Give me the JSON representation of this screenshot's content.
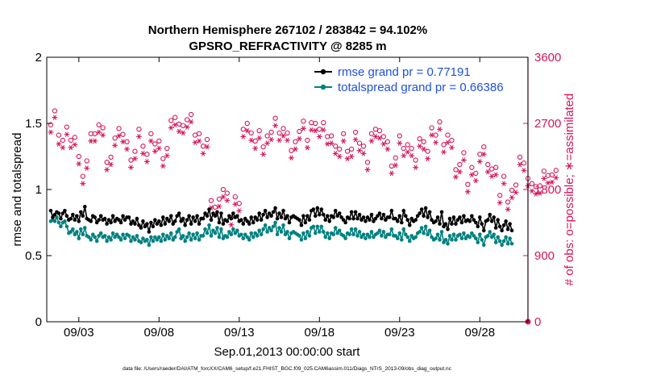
{
  "chart_data": {
    "type": "line",
    "title": "Northern Hemisphere 267102 / 283842 = 94.102%",
    "subtitle": "GPSRO_REFRACTIVITY @ 8285 m",
    "xlabel": "Sep.01,2013 00:00:00 start",
    "ylabel": "rmse and totalspread",
    "y2label": "# of obs: o=possible; ∗=assimilated",
    "footnote": "data file: /Users/raeder/DAI/ATM_forcXX/CAM6_setup/f.e21.FHIST_BGC.f09_025.CAM6assim.011/Diags_NTrS_2013-09/obs_diag_output.nc",
    "x_ticks": [
      {
        "label": "09/03",
        "day": 3
      },
      {
        "label": "09/08",
        "day": 8
      },
      {
        "label": "09/13",
        "day": 13
      },
      {
        "label": "09/18",
        "day": 18
      },
      {
        "label": "09/23",
        "day": 23
      },
      {
        "label": "09/28",
        "day": 28
      }
    ],
    "xlim_days": [
      1.0,
      31.0
    ],
    "ylim": [
      0,
      2
    ],
    "y_ticks": [
      "0",
      "0.5",
      "1",
      "1.5",
      "2"
    ],
    "y2lim": [
      0,
      3600
    ],
    "y2_ticks": [
      "0",
      "900",
      "1800",
      "2700",
      "3600"
    ],
    "grid": false,
    "legend_position": "top-right",
    "colors": {
      "rmse": "#000000",
      "spread": "#008080",
      "obs": "#d4145a",
      "legend_text": "#1f4fe0"
    },
    "series": [
      {
        "name": "rmse grand pr = 0.77191",
        "key": "rmse",
        "marker": "filled-circle",
        "values": [
          0.84,
          0.79,
          0.81,
          0.83,
          0.82,
          0.78,
          0.82,
          0.84,
          0.8,
          0.77,
          0.78,
          0.81,
          0.77,
          0.8,
          0.76,
          0.83,
          0.8,
          0.87,
          0.78,
          0.77,
          0.76,
          0.8,
          0.79,
          0.75,
          0.77,
          0.8,
          0.77,
          0.78,
          0.74,
          0.77,
          0.75,
          0.8,
          0.76,
          0.78,
          0.77,
          0.75,
          0.8,
          0.77,
          0.79,
          0.79,
          0.74,
          0.76,
          0.74,
          0.78,
          0.73,
          0.71,
          0.76,
          0.72,
          0.74,
          0.68,
          0.75,
          0.72,
          0.77,
          0.74,
          0.76,
          0.73,
          0.79,
          0.74,
          0.78,
          0.76,
          0.8,
          0.74,
          0.76,
          0.8,
          0.82,
          0.76,
          0.78,
          0.73,
          0.77,
          0.8,
          0.74,
          0.79,
          0.76,
          0.8,
          0.74,
          0.78,
          0.78,
          0.82,
          0.8,
          0.85,
          0.77,
          0.82,
          0.8,
          0.83,
          0.75,
          0.82,
          0.74,
          0.77,
          0.76,
          0.8,
          0.78,
          0.82,
          0.79,
          0.8,
          0.76,
          0.77,
          0.74,
          0.78,
          0.76,
          0.74,
          0.79,
          0.75,
          0.79,
          0.77,
          0.82,
          0.77,
          0.81,
          0.84,
          0.79,
          0.82,
          0.8,
          0.83,
          0.86,
          0.78,
          0.82,
          0.79,
          0.84,
          0.78,
          0.8,
          0.75,
          0.79,
          0.8,
          0.79,
          0.78,
          0.77,
          0.73,
          0.8,
          0.75,
          0.8,
          0.77,
          0.84,
          0.85,
          0.8,
          0.86,
          0.81,
          0.85,
          0.81,
          0.77,
          0.8,
          0.76,
          0.8,
          0.79,
          0.84,
          0.8,
          0.82,
          0.79,
          0.77,
          0.75,
          0.79,
          0.78,
          0.83,
          0.78,
          0.83,
          0.78,
          0.81,
          0.77,
          0.79,
          0.76,
          0.79,
          0.77,
          0.81,
          0.76,
          0.78,
          0.8,
          0.82,
          0.78,
          0.81,
          0.77,
          0.79,
          0.79,
          0.84,
          0.78,
          0.78,
          0.76,
          0.8,
          0.75,
          0.84,
          0.8,
          0.77,
          0.73,
          0.78,
          0.76,
          0.77,
          0.8,
          0.82,
          0.85,
          0.8,
          0.86,
          0.79,
          0.83,
          0.77,
          0.75,
          0.76,
          0.79,
          0.74,
          0.83,
          0.72,
          0.74,
          0.7,
          0.78,
          0.74,
          0.79,
          0.74,
          0.77,
          0.79,
          0.75,
          0.8,
          0.76,
          0.77,
          0.76,
          0.8,
          0.77,
          0.75,
          0.72,
          0.79,
          0.74,
          0.69,
          0.76,
          0.77,
          0.81,
          0.76,
          0.79,
          0.71,
          0.77,
          0.72,
          0.69,
          0.73,
          0.76,
          0.7,
          0.74,
          0.69
        ]
      },
      {
        "name": "totalspread grand pr = 0.66386",
        "key": "spread",
        "marker": "filled-circle",
        "values": [
          0.76,
          0.77,
          0.76,
          0.79,
          0.75,
          0.72,
          0.75,
          0.76,
          0.72,
          0.67,
          0.68,
          0.7,
          0.66,
          0.68,
          0.63,
          0.7,
          0.66,
          0.71,
          0.65,
          0.64,
          0.62,
          0.66,
          0.64,
          0.61,
          0.65,
          0.67,
          0.64,
          0.65,
          0.61,
          0.64,
          0.62,
          0.67,
          0.64,
          0.66,
          0.64,
          0.62,
          0.66,
          0.63,
          0.66,
          0.65,
          0.61,
          0.64,
          0.62,
          0.65,
          0.61,
          0.6,
          0.63,
          0.61,
          0.62,
          0.58,
          0.64,
          0.61,
          0.64,
          0.62,
          0.64,
          0.61,
          0.66,
          0.62,
          0.65,
          0.63,
          0.67,
          0.62,
          0.64,
          0.68,
          0.7,
          0.63,
          0.65,
          0.61,
          0.64,
          0.67,
          0.62,
          0.66,
          0.63,
          0.67,
          0.62,
          0.65,
          0.65,
          0.7,
          0.67,
          0.73,
          0.65,
          0.69,
          0.67,
          0.71,
          0.64,
          0.7,
          0.63,
          0.65,
          0.64,
          0.68,
          0.66,
          0.7,
          0.67,
          0.69,
          0.65,
          0.66,
          0.63,
          0.66,
          0.64,
          0.62,
          0.67,
          0.64,
          0.67,
          0.65,
          0.69,
          0.66,
          0.7,
          0.73,
          0.68,
          0.71,
          0.69,
          0.72,
          0.75,
          0.66,
          0.71,
          0.68,
          0.73,
          0.66,
          0.68,
          0.63,
          0.67,
          0.68,
          0.67,
          0.66,
          0.65,
          0.62,
          0.67,
          0.63,
          0.68,
          0.65,
          0.71,
          0.72,
          0.67,
          0.72,
          0.68,
          0.72,
          0.68,
          0.64,
          0.67,
          0.63,
          0.67,
          0.66,
          0.71,
          0.67,
          0.69,
          0.66,
          0.65,
          0.63,
          0.67,
          0.66,
          0.7,
          0.66,
          0.7,
          0.65,
          0.68,
          0.64,
          0.66,
          0.63,
          0.66,
          0.64,
          0.68,
          0.64,
          0.66,
          0.67,
          0.69,
          0.65,
          0.68,
          0.64,
          0.66,
          0.66,
          0.7,
          0.65,
          0.65,
          0.63,
          0.67,
          0.62,
          0.7,
          0.66,
          0.64,
          0.61,
          0.65,
          0.63,
          0.64,
          0.67,
          0.68,
          0.71,
          0.67,
          0.72,
          0.66,
          0.69,
          0.64,
          0.62,
          0.63,
          0.66,
          0.62,
          0.68,
          0.6,
          0.62,
          0.59,
          0.65,
          0.62,
          0.66,
          0.62,
          0.65,
          0.66,
          0.63,
          0.67,
          0.63,
          0.65,
          0.64,
          0.67,
          0.65,
          0.63,
          0.6,
          0.66,
          0.62,
          0.58,
          0.64,
          0.65,
          0.68,
          0.64,
          0.66,
          0.6,
          0.64,
          0.61,
          0.58,
          0.61,
          0.64,
          0.59,
          0.63,
          0.59
        ]
      },
      {
        "name": "possible",
        "key": "possible",
        "axis": "right",
        "marker": "open-circle",
        "values": [
          2680,
          2980,
          2870,
          2900,
          2540,
          2560,
          2470,
          2540,
          2650,
          2360,
          2470,
          2520,
          2510,
          2370,
          2250,
          2320,
          1980,
          2380,
          2190,
          2470,
          2560,
          2300,
          2560,
          2460,
          2680,
          2460,
          2640,
          2450,
          2170,
          2250,
          2240,
          2420,
          2500,
          2240,
          2630,
          2280,
          2550,
          2360,
          2450,
          2080,
          2200,
          2280,
          2320,
          2430,
          2620,
          2380,
          2390,
          2460,
          2280,
          2450,
          2560,
          2320,
          2420,
          2240,
          2460,
          2370,
          2220,
          2600,
          2360,
          2580,
          2740,
          2610,
          2780,
          2910,
          2690,
          2820,
          2670,
          2860,
          2750,
          2620,
          2820,
          2690,
          2540,
          2720,
          2560,
          2460,
          2390,
          2260,
          2480,
          2080,
          1650,
          1700,
          1560,
          1730,
          1670,
          1560,
          1800,
          1500,
          1750,
          1620,
          1420,
          1510,
          1700,
          1620,
          1610,
          2440,
          2620,
          2650,
          2700,
          2620,
          2570,
          2710,
          2460,
          2720,
          2600,
          2470,
          2380,
          2680,
          2530,
          2660,
          2580,
          2440,
          2770,
          2460,
          2570,
          2630,
          2630,
          2720,
          2570,
          2470,
          2330,
          2610,
          2450,
          2680,
          2590,
          2330,
          2730,
          2560,
          2470,
          2620,
          2710,
          2830,
          2700,
          2550,
          2620,
          2470,
          2710,
          2460,
          2520,
          2430,
          2530,
          2340,
          2390,
          2220,
          2350,
          2310,
          2560,
          2410,
          2320,
          2480,
          2350,
          2670,
          2580,
          2490,
          2430,
          2520,
          2390,
          2460,
          2170,
          2280,
          2560,
          2540,
          2620,
          2390,
          2600,
          2410,
          2520,
          2120,
          2450,
          2220,
          2120,
          2370,
          2230,
          2610,
          2530,
          2280,
          2360,
          2440,
          2410,
          2270,
          2360,
          2180,
          2200,
          2300,
          2490,
          2320,
          2450,
          2150,
          2320,
          2560,
          2640,
          2430,
          2540,
          2350,
          2720,
          2450,
          2410,
          2360,
          2540,
          2270,
          2470,
          2380,
          2070,
          2280,
          2140,
          2010,
          2300,
          2070,
          1870,
          1690,
          2100,
          1980,
          2020,
          2250,
          2280,
          2100,
          2380,
          2360,
          2140,
          2230,
          2080,
          1940,
          2100,
          1850,
          1720,
          1830,
          1980,
          1960,
          1630,
          1920,
          1790,
          1950,
          1860,
          2070,
          2240,
          2430,
          2160,
          2080,
          1950,
          1910,
          1880,
          1850,
          1840,
          1800,
          1850,
          2100,
          2050,
          1900,
          1990,
          2080,
          2000,
          2070,
          2060,
          2100
        ]
      },
      {
        "name": "assimilated",
        "key": "assimilated",
        "axis": "right",
        "marker": "asterisk",
        "values": [
          2580,
          2880,
          2780,
          2700,
          2420,
          2460,
          2370,
          2440,
          2550,
          2260,
          2370,
          2420,
          2410,
          2270,
          2150,
          2220,
          1880,
          2280,
          2090,
          2370,
          2460,
          2200,
          2460,
          2360,
          2580,
          2360,
          2540,
          2350,
          2070,
          2150,
          2140,
          2320,
          2400,
          2140,
          2530,
          2180,
          2450,
          2260,
          2350,
          1980,
          2100,
          2180,
          2220,
          2330,
          2520,
          2280,
          2290,
          2360,
          2180,
          2350,
          2460,
          2220,
          2320,
          2140,
          2360,
          2270,
          2120,
          2500,
          2260,
          2480,
          2640,
          2510,
          2680,
          2810,
          2590,
          2720,
          2570,
          2760,
          2650,
          2520,
          2720,
          2590,
          2440,
          2620,
          2460,
          2360,
          2290,
          2160,
          2380,
          1980,
          1550,
          1600,
          1460,
          1630,
          1570,
          1460,
          1700,
          1400,
          1650,
          1520,
          1320,
          1410,
          1600,
          1520,
          1510,
          2340,
          2520,
          2550,
          2600,
          2520,
          2470,
          2610,
          2360,
          2620,
          2500,
          2370,
          2280,
          2580,
          2430,
          2560,
          2480,
          2340,
          2670,
          2360,
          2470,
          2530,
          2530,
          2620,
          2470,
          2370,
          2230,
          2510,
          2350,
          2580,
          2490,
          2230,
          2630,
          2460,
          2370,
          2520,
          2610,
          2730,
          2600,
          2450,
          2520,
          2370,
          2610,
          2360,
          2420,
          2330,
          2430,
          2240,
          2290,
          2120,
          2250,
          2210,
          2460,
          2310,
          2220,
          2380,
          2250,
          2570,
          2480,
          2390,
          2330,
          2420,
          2290,
          2360,
          2070,
          2180,
          2460,
          2440,
          2520,
          2290,
          2500,
          2310,
          2420,
          2020,
          2350,
          2120,
          2020,
          2270,
          2130,
          2510,
          2430,
          2180,
          2260,
          2340,
          2310,
          2170,
          2260,
          2080,
          2100,
          2200,
          2390,
          2220,
          2350,
          2050,
          2220,
          2460,
          2540,
          2330,
          2440,
          2250,
          2620,
          2350,
          2310,
          2260,
          2440,
          2170,
          2370,
          2280,
          1970,
          2180,
          2040,
          1910,
          2200,
          1970,
          1770,
          1590,
          2000,
          1880,
          1920,
          2150,
          2180,
          2000,
          2280,
          2260,
          2040,
          2130,
          1980,
          1840,
          2000,
          1750,
          1620,
          1730,
          1880,
          1860,
          1530,
          1820,
          1690,
          1850,
          1760,
          1970,
          2140,
          2330,
          2060,
          1980,
          1850,
          1810,
          1780,
          1750,
          1740,
          1700,
          1750,
          2000,
          1950,
          1800,
          1890,
          1980,
          1900,
          1970,
          1960,
          1990
        ]
      }
    ],
    "legend": [
      "rmse grand pr = 0.77191",
      "totalspread grand pr = 0.66386"
    ]
  }
}
